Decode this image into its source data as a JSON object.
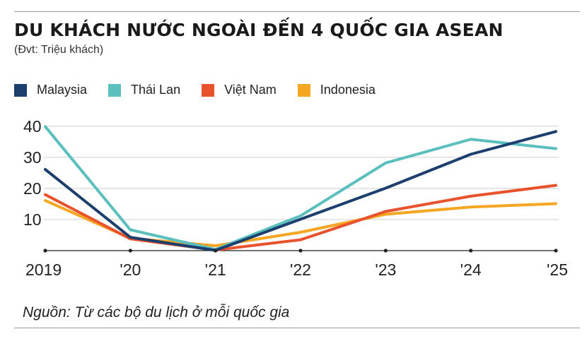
{
  "header": {
    "title": "DU KHÁCH NƯỚC NGOÀI ĐẾN 4 QUỐC GIA ASEAN",
    "unit": "(Đvt: Triệu khách)"
  },
  "footer": {
    "source": "Nguồn: Từ các bộ du lịch ở mỗi quốc gia"
  },
  "chart_data": {
    "type": "line",
    "title": "DU KHÁCH NƯỚC NGOÀI ĐẾN 4 QUỐC GIA ASEAN",
    "subtitle": "(Đvt: Triệu khách)",
    "xlabel": "",
    "ylabel": "Triệu khách",
    "x": [
      "2019",
      "'20",
      "'21",
      "'22",
      "'23",
      "'24",
      "'25"
    ],
    "yticks": [
      "10",
      "20",
      "30",
      "40"
    ],
    "ylim": [
      0,
      42
    ],
    "grid": true,
    "legend_position": "top-left",
    "series": [
      {
        "name": "Malaysia",
        "color": "#1c3f6e",
        "values": [
          26.1,
          4.3,
          0.1,
          10.1,
          20.1,
          31.0,
          38.3
        ]
      },
      {
        "name": "Thái Lan",
        "color": "#5bbfbd",
        "values": [
          39.9,
          6.7,
          0.4,
          11.2,
          28.2,
          35.8,
          32.8
        ]
      },
      {
        "name": "Việt Nam",
        "color": "#e8522d",
        "values": [
          18.0,
          3.8,
          0.2,
          3.5,
          12.6,
          17.5,
          21.0
        ]
      },
      {
        "name": "Indonesia",
        "color": "#f5a623",
        "values": [
          16.1,
          4.0,
          1.6,
          5.9,
          11.7,
          14.0,
          15.1
        ]
      }
    ]
  }
}
